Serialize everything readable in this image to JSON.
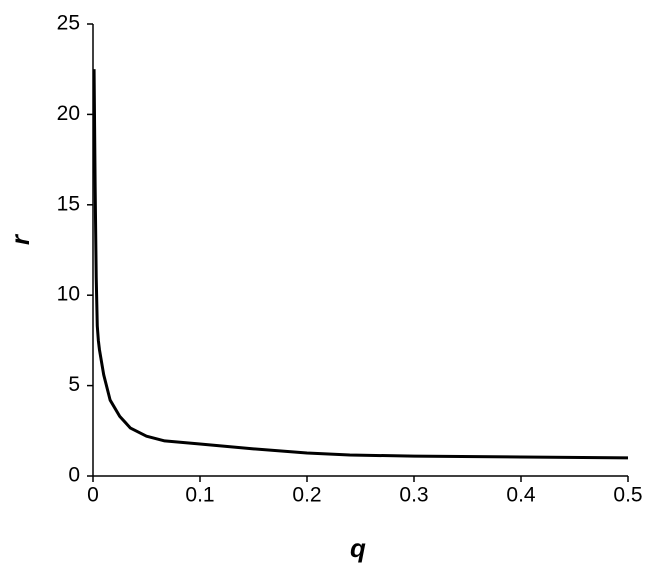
{
  "chart_data": {
    "type": "line",
    "x_label": "q",
    "y_label": "r",
    "x": [
      0.001,
      0.002,
      0.003,
      0.004,
      0.005,
      0.006,
      0.01,
      0.016,
      0.025,
      0.035,
      0.05,
      0.067,
      0.1,
      0.15,
      0.2,
      0.24,
      0.3,
      0.4,
      0.5
    ],
    "series": [
      {
        "name": "r",
        "color": "#000000",
        "values": [
          22.5,
          16,
          11,
          8.3,
          7.5,
          7,
          5.6,
          4.2,
          3.3,
          2.65,
          2.2,
          1.94,
          1.77,
          1.5,
          1.27,
          1.16,
          1.1,
          1.05,
          1.0
        ]
      }
    ],
    "xlim": [
      0,
      0.5
    ],
    "xticks": [
      0,
      0.1,
      0.2,
      0.3,
      0.4,
      0.5
    ],
    "ylim": [
      0,
      25
    ],
    "yticks": [
      0,
      5,
      10,
      15,
      20,
      25
    ],
    "grid": false
  }
}
